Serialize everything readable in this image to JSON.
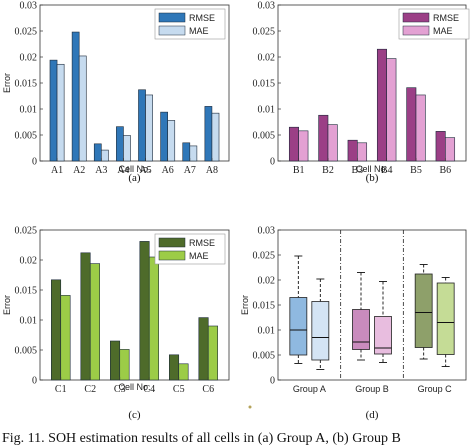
{
  "chart_data": [
    {
      "panel": "(a)",
      "type": "bar",
      "ylabel": "Error",
      "xlabel": "Cell No.",
      "ylim": [
        0,
        0.03
      ],
      "yticks": [
        "0",
        "0.005",
        "0.01",
        "0.015",
        "0.02",
        "0.025",
        "0.03"
      ],
      "categories": [
        "A1",
        "A2",
        "A3",
        "A4",
        "A5",
        "A6",
        "A7",
        "A8"
      ],
      "series": [
        {
          "name": "RMSE",
          "color": "#2f77b8",
          "values": [
            0.0194,
            0.0248,
            0.0033,
            0.0066,
            0.0137,
            0.0094,
            0.0035,
            0.0105
          ]
        },
        {
          "name": "MAE",
          "color": "#c6dbef",
          "values": [
            0.0186,
            0.0202,
            0.0021,
            0.0049,
            0.0127,
            0.0078,
            0.0029,
            0.0092
          ]
        }
      ],
      "legend": "top-right",
      "grid": false
    },
    {
      "panel": "(b)",
      "type": "bar",
      "ylabel": "",
      "xlabel": "Cell No.",
      "ylim": [
        0,
        0.03
      ],
      "yticks": [
        "0",
        "0.005",
        "0.01",
        "0.015",
        "0.02",
        "0.025",
        "0.03"
      ],
      "categories": [
        "B1",
        "B2",
        "B3",
        "B4",
        "B5",
        "B6"
      ],
      "series": [
        {
          "name": "RMSE",
          "color": "#9b3f86",
          "values": [
            0.0065,
            0.0088,
            0.004,
            0.0215,
            0.0141,
            0.0057
          ]
        },
        {
          "name": "MAE",
          "color": "#e3a1d3",
          "values": [
            0.0058,
            0.007,
            0.0035,
            0.0197,
            0.0127,
            0.0045
          ]
        }
      ],
      "legend": "top-right",
      "grid": false
    },
    {
      "panel": "(c)",
      "type": "bar",
      "ylabel": "Error",
      "xlabel": "Cell No.",
      "ylim": [
        0,
        0.025
      ],
      "yticks": [
        "0",
        "0.005",
        "0.01",
        "0.015",
        "0.02",
        "0.025"
      ],
      "categories": [
        "C1",
        "C2",
        "C3",
        "C4",
        "C5",
        "C6"
      ],
      "series": [
        {
          "name": "RMSE",
          "color": "#4e6b2a",
          "values": [
            0.0167,
            0.0212,
            0.0065,
            0.0231,
            0.0042,
            0.0104
          ]
        },
        {
          "name": "MAE",
          "color": "#9ccc47",
          "values": [
            0.0141,
            0.0194,
            0.0051,
            0.0205,
            0.0027,
            0.009
          ]
        }
      ],
      "legend": "top-right",
      "grid": false
    },
    {
      "panel": "(d)",
      "type": "box",
      "ylabel": "Error",
      "ylim": [
        0,
        0.03
      ],
      "yticks": [
        "0",
        "0.005",
        "0.01",
        "0.015",
        "0.02",
        "0.025",
        "0.03"
      ],
      "groups": [
        "Group A",
        "Group B",
        "Group C"
      ],
      "boxes": [
        {
          "group": "Group A",
          "metric": "RMSE",
          "color": "#8fb9e0",
          "min": 0.0033,
          "q1": 0.005,
          "median": 0.01,
          "q3": 0.0165,
          "max": 0.0248
        },
        {
          "group": "Group A",
          "metric": "MAE",
          "color": "#d4e4f4",
          "min": 0.0021,
          "q1": 0.004,
          "median": 0.0085,
          "q3": 0.0157,
          "max": 0.0202
        },
        {
          "group": "Group B",
          "metric": "RMSE",
          "color": "#c98bbd",
          "min": 0.004,
          "q1": 0.0061,
          "median": 0.0076,
          "q3": 0.0141,
          "max": 0.0215
        },
        {
          "group": "Group B",
          "metric": "MAE",
          "color": "#e8bddf",
          "min": 0.0035,
          "q1": 0.0052,
          "median": 0.0064,
          "q3": 0.0127,
          "max": 0.0197
        },
        {
          "group": "Group C",
          "metric": "RMSE",
          "color": "#8ea06a",
          "min": 0.0042,
          "q1": 0.0065,
          "median": 0.0135,
          "q3": 0.0212,
          "max": 0.0231
        },
        {
          "group": "Group C",
          "metric": "MAE",
          "color": "#c5dc96",
          "min": 0.0027,
          "q1": 0.0051,
          "median": 0.0115,
          "q3": 0.0194,
          "max": 0.0205
        }
      ],
      "grid": false
    }
  ],
  "caption": "Fig. 11.   SOH estimation results of all cells in (a) Group A, (b) Group B"
}
